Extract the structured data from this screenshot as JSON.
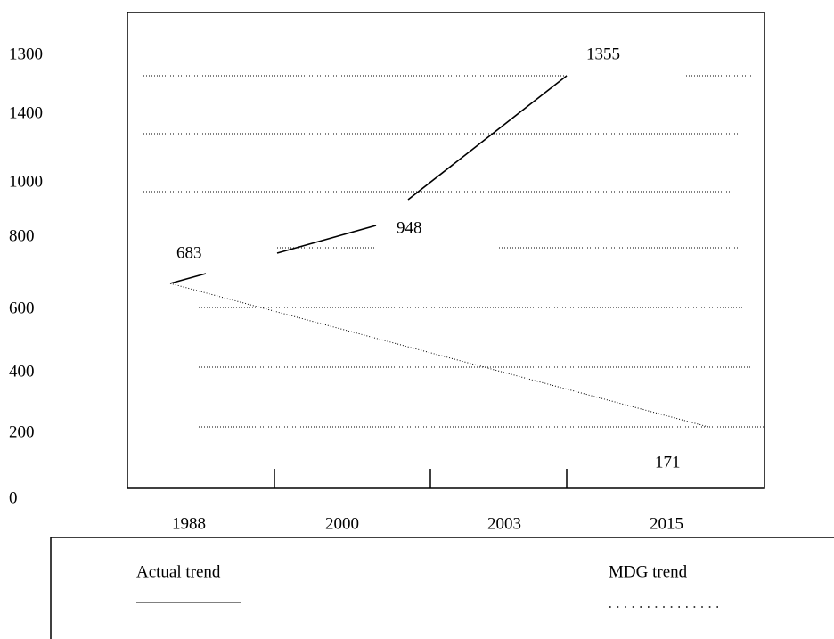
{
  "y_axis_labels": [
    "1300",
    "1400",
    "1000",
    "800",
    "600",
    "400",
    "200",
    "0"
  ],
  "x_axis_labels": [
    "1988",
    "2000",
    "2003",
    "2015"
  ],
  "point_labels": [
    "683",
    "948",
    "1355",
    "171"
  ],
  "legend": {
    "actual": "Actual trend",
    "mdg": "MDG trend"
  }
}
